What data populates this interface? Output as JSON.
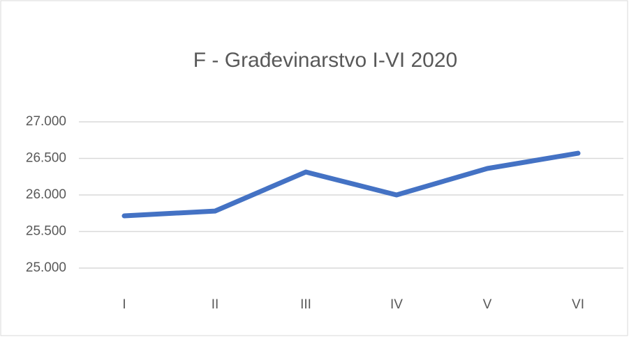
{
  "chart_data": {
    "type": "line",
    "title": "F - Građevinarstvo I-VI 2020",
    "categories": [
      "I",
      "II",
      "III",
      "IV",
      "V",
      "VI"
    ],
    "series": [
      {
        "color": "#4472c4",
        "values": [
          25714,
          25780,
          26314,
          26000,
          26362,
          26571
        ]
      }
    ],
    "ylim": [
      25000,
      27000
    ],
    "yticks": [
      {
        "value": 25000,
        "label": "25.000"
      },
      {
        "value": 25500,
        "label": "25.500"
      },
      {
        "value": 26000,
        "label": "26.000"
      },
      {
        "value": 26500,
        "label": "26.500"
      },
      {
        "value": 27000,
        "label": "27.000"
      }
    ],
    "grid": true
  }
}
